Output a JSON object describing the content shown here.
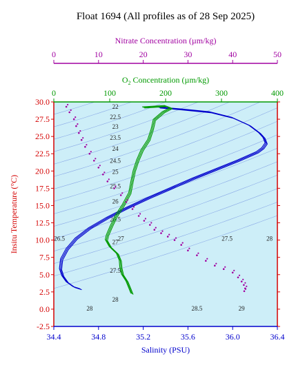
{
  "chart_data": {
    "type": "line",
    "title": "Float 1694  (All profiles as of 28 Sep 2025)",
    "xlabel": "Salinity (PSU)",
    "ylabel": "Insitu Temperature (°C)",
    "xlim": [
      34.4,
      36.4
    ],
    "ylim": [
      -2.5,
      30.0
    ],
    "x_ticks": [
      "34.4",
      "34.8",
      "35.2",
      "35.6",
      "36.0",
      "36.4"
    ],
    "y_ticks": [
      "-2.5",
      "0.0",
      "2.5",
      "5.0",
      "7.5",
      "10.0",
      "12.5",
      "15.0",
      "17.5",
      "20.0",
      "22.5",
      "25.0",
      "27.5",
      "30.0"
    ],
    "grid": false,
    "background_color": "#cdeef8",
    "top_axes": [
      {
        "label": "O₂ Concentration (µm/kg)",
        "label_main": "O",
        "label_sub": "2",
        "label_rest": " Concentration (µm/kg)",
        "lim": [
          0,
          400
        ],
        "ticks": [
          "0",
          "100",
          "200",
          "300",
          "400"
        ],
        "color": "#009900"
      },
      {
        "label": "Nitrate Concentration (µm/kg)",
        "lim": [
          0,
          50
        ],
        "ticks": [
          "0",
          "10",
          "20",
          "30",
          "40",
          "50"
        ],
        "color": "#a000a0"
      }
    ],
    "density_contours": [
      {
        "label": "22",
        "label_x": 34.95,
        "label_y": 29.3
      },
      {
        "label": "22.5",
        "label_x": 34.95,
        "label_y": 27.8
      },
      {
        "label": "23",
        "label_x": 34.95,
        "label_y": 26.4
      },
      {
        "label": "23.5",
        "label_x": 34.95,
        "label_y": 24.8
      },
      {
        "label": "24",
        "label_x": 34.95,
        "label_y": 23.2
      },
      {
        "label": "24.5",
        "label_x": 34.95,
        "label_y": 21.5
      },
      {
        "label": "25",
        "label_x": 34.95,
        "label_y": 19.9
      },
      {
        "label": "25.5",
        "label_x": 34.95,
        "label_y": 17.8
      },
      {
        "label": "26",
        "label_x": 34.95,
        "label_y": 15.6
      },
      {
        "label": "26.5",
        "label_x": 34.95,
        "label_y": 13.0
      },
      {
        "label": "27",
        "label_x": 34.95,
        "label_y": 9.7
      },
      {
        "label": "27.5",
        "label_x": 34.95,
        "label_y": 5.6
      },
      {
        "label": "28",
        "label_x": 34.95,
        "label_y": 1.4
      },
      {
        "label": "28",
        "label_x": 34.72,
        "label_y": 0.1
      },
      {
        "label": "28.5",
        "label_x": 35.68,
        "label_y": 0.1
      },
      {
        "label": "29",
        "label_x": 36.08,
        "label_y": 0.1
      },
      {
        "label": "27.5",
        "label_x": 35.95,
        "label_y": 10.2
      },
      {
        "label": "28",
        "label_x": 36.33,
        "label_y": 10.2
      },
      {
        "label": "27",
        "label_x": 35.0,
        "label_y": 10.2
      },
      {
        "label": "26.5",
        "label_x": 34.45,
        "label_y": 10.2
      }
    ],
    "series": [
      {
        "name": "Salinity",
        "color": "#0000cc",
        "style": "line",
        "x": [
          35.34,
          35.55,
          35.8,
          36.0,
          36.15,
          36.24,
          36.28,
          36.3,
          36.27,
          36.22,
          36.05,
          35.85,
          35.65,
          35.45,
          35.25,
          35.05,
          34.88,
          34.72,
          34.6,
          34.52,
          34.47,
          34.46,
          34.48,
          34.52,
          34.58,
          34.64
        ],
        "y": [
          29.2,
          28.9,
          28.5,
          27.7,
          26.6,
          25.5,
          24.8,
          24.0,
          23.3,
          22.7,
          21.5,
          20.2,
          18.9,
          17.5,
          16.1,
          14.6,
          13.2,
          11.7,
          10.2,
          8.7,
          7.2,
          5.8,
          4.8,
          3.9,
          3.2,
          2.9
        ]
      },
      {
        "name": "O2",
        "color": "#009900",
        "style": "line",
        "x": [
          160,
          180,
          200,
          210,
          196,
          180,
          176,
          170,
          158,
          150,
          144,
          140,
          136,
          124,
          112,
          103,
          96,
          94,
          101,
          114,
          119,
          120,
          123,
          131,
          136,
          140
        ],
        "y": [
          29.2,
          29.3,
          29.4,
          29.1,
          28.5,
          27.4,
          26.0,
          24.5,
          23.0,
          21.5,
          20.0,
          18.5,
          16.8,
          15.0,
          13.5,
          12.0,
          10.7,
          10.0,
          9.0,
          8.0,
          7.0,
          6.0,
          5.0,
          4.0,
          3.0,
          2.2
        ]
      },
      {
        "name": "Nitrate",
        "color": "#a000a0",
        "style": "scatter",
        "x": [
          2.8,
          3.5,
          4.5,
          5.0,
          5.6,
          6.2,
          7.0,
          8.0,
          9.0,
          10.0,
          11.0,
          12.0,
          13.5,
          15.0,
          16.2,
          17.6,
          19.0,
          20.2,
          21.5,
          22.5,
          24.0,
          25.5,
          27.0,
          28.5,
          30.0,
          32.0,
          34.0,
          36.0,
          38.0,
          40.0,
          41.2,
          42.0,
          42.5,
          42.8,
          42.6
        ],
        "y": [
          29.3,
          28.5,
          27.5,
          26.5,
          25.5,
          24.5,
          23.5,
          22.5,
          21.5,
          20.5,
          19.5,
          18.5,
          17.5,
          16.5,
          15.5,
          14.5,
          13.5,
          12.8,
          12.2,
          11.5,
          11.0,
          10.5,
          10.0,
          9.3,
          8.5,
          7.8,
          7.0,
          6.3,
          5.8,
          5.3,
          4.6,
          4.0,
          3.5,
          3.0,
          2.6
        ]
      }
    ]
  }
}
